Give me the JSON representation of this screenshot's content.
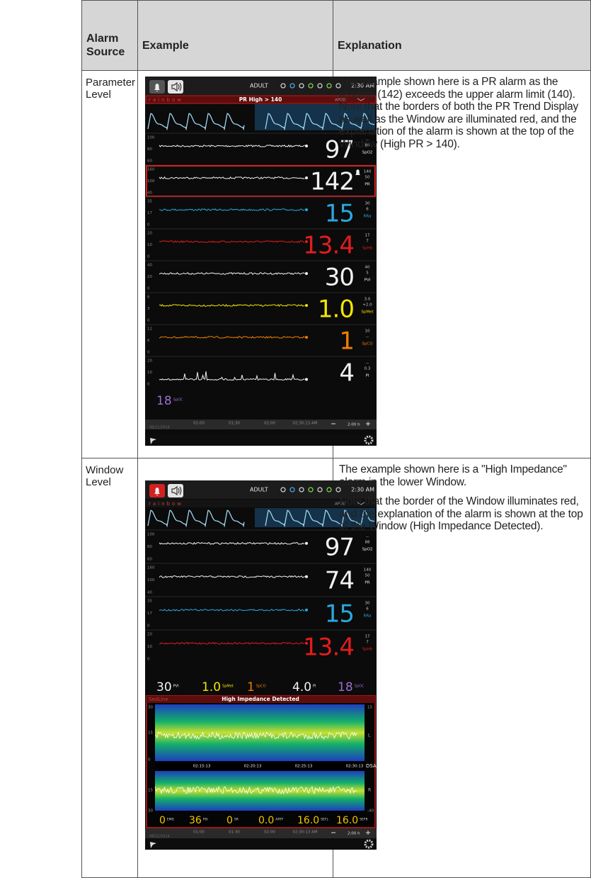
{
  "header": {
    "source": "Alarm Source",
    "example": "Example",
    "explanation": "Explanation"
  },
  "rows": [
    {
      "source": "Parameter Level",
      "explanation": [
        "The example shown here is a PR alarm as the reading (142) exceeds the upper alarm limit (140). Note that the borders of both the PR Trend Display as well as the Window are illuminated red, and the explanation of the alarm is shown at the top of the Window (High PR > 140)."
      ],
      "screen": {
        "mode": "ADULT",
        "time": "2:30 AM",
        "brand": "rainbow",
        "banner": "PR High > 140",
        "apod": "APOD",
        "bell_alarm": false,
        "params": [
          {
            "label": "SpO2",
            "value": "97",
            "color": "#f2f2f2",
            "ticks": [
              "100",
              "80",
              "60"
            ],
            "limits": [
              "--",
              "88"
            ],
            "alarm": false
          },
          {
            "label": "PR",
            "value": "142",
            "color": "#f2f2f2",
            "ticks": [
              "160",
              "100",
              "40"
            ],
            "limits": [
              "140",
              "50"
            ],
            "alarm": true
          },
          {
            "label": "RRa",
            "value": "15",
            "color": "#2aa8e0",
            "ticks": [
              "35",
              "17",
              "0"
            ],
            "limits": [
              "30",
              "6"
            ],
            "alarm": false
          },
          {
            "label": "SpHb",
            "value": "13.4",
            "color": "#e21c1c",
            "ticks": [
              "20",
              "10",
              "0"
            ],
            "limits": [
              "17",
              "7"
            ],
            "alarm": false
          },
          {
            "label": "PVI",
            "value": "30",
            "color": "#f2f2f2",
            "ticks": [
              "40",
              "20",
              "0"
            ],
            "limits": [
              "40",
              "5"
            ],
            "alarm": false
          },
          {
            "label": "SpMet",
            "value": "1.0",
            "color": "#f2e600",
            "ticks": [
              "6",
              "3",
              "0"
            ],
            "limits": [
              "3.0",
              "+2.0"
            ],
            "alarm": false
          },
          {
            "label": "SpCO",
            "value": "1",
            "color": "#f07f00",
            "ticks": [
              "12",
              "6",
              "0"
            ],
            "limits": [
              "10",
              "--"
            ],
            "alarm": false
          },
          {
            "label": "PI",
            "value": "4",
            "color": "#f2f2f2",
            "ticks": [
              "20",
              "10",
              "0"
            ],
            "limits": [
              "--",
              "0.3"
            ],
            "alarm": false
          }
        ],
        "summary": [
          {
            "value": "18",
            "label": "SpOC",
            "color": "#9a6fd0"
          }
        ],
        "timeline": {
          "date": "08/21/2014",
          "times": [
            "01:00",
            "01:30",
            "02:00",
            "02:30:13 AM"
          ],
          "span": "2:00 h"
        }
      }
    },
    {
      "source": "Window Level",
      "explanation": [
        "The example shown here is a \"High Impedance\" alarm in the lower Window.",
        "Note that the border of the Window illuminates red, and the explanation of the alarm is shown at the top of the Window (High Impedance Detected)."
      ],
      "screen": {
        "mode": "ADULT",
        "time": "2:30 AM",
        "brand": "rainbow",
        "apod": "APOD",
        "bell_alarm": true,
        "params": [
          {
            "label": "SpO2",
            "value": "97",
            "color": "#f2f2f2",
            "ticks": [
              "100",
              "80",
              "60"
            ],
            "limits": [
              "--",
              "88"
            ],
            "alarm": false
          },
          {
            "label": "PR",
            "value": "74",
            "color": "#f2f2f2",
            "ticks": [
              "160",
              "100",
              "40"
            ],
            "limits": [
              "140",
              "50"
            ],
            "alarm": false
          },
          {
            "label": "RRa",
            "value": "15",
            "color": "#2aa8e0",
            "ticks": [
              "35",
              "17",
              "0"
            ],
            "limits": [
              "30",
              "6"
            ],
            "alarm": false
          },
          {
            "label": "SpHb",
            "value": "13.4",
            "color": "#e21c1c",
            "ticks": [
              "20",
              "10",
              "0"
            ],
            "limits": [
              "17",
              "7"
            ],
            "alarm": false
          }
        ],
        "summary": [
          {
            "value": "30",
            "label": "PVI",
            "color": "#f2f2f2"
          },
          {
            "value": "1.0",
            "label": "SpMet",
            "color": "#f2e600"
          },
          {
            "value": "1",
            "label": "SpCO",
            "color": "#f07f00"
          },
          {
            "value": "4.0",
            "label": "PI",
            "color": "#f2f2f2"
          },
          {
            "value": "18",
            "label": "SpOC",
            "color": "#9a6fd0"
          }
        ],
        "sedline": {
          "name": "SedLine",
          "banner": "High Impedance Detected",
          "left_ticks": [
            "30",
            "15",
            "0",
            "15",
            "30"
          ],
          "right_ticks": [
            "15",
            "-40"
          ],
          "side_labels": [
            "L",
            "R"
          ],
          "times": [
            "02:15:13",
            "02:20:13",
            "02:25:13",
            "02:30:13"
          ],
          "dsa": "DSA",
          "metrics": [
            {
              "value": "0",
              "label": "EMG"
            },
            {
              "value": "36",
              "label": "PSI"
            },
            {
              "value": "0",
              "label": "SR"
            },
            {
              "value": "0.0",
              "label": "ARTF"
            },
            {
              "value": "16.0",
              "label": "SEFL"
            },
            {
              "value": "16.0",
              "label": "SEFR"
            }
          ]
        },
        "timeline": {
          "date": "08/21/2014",
          "times": [
            "01:00",
            "01:30",
            "02:00",
            "02:30:13 AM"
          ],
          "span": "2:00 h"
        }
      }
    }
  ]
}
